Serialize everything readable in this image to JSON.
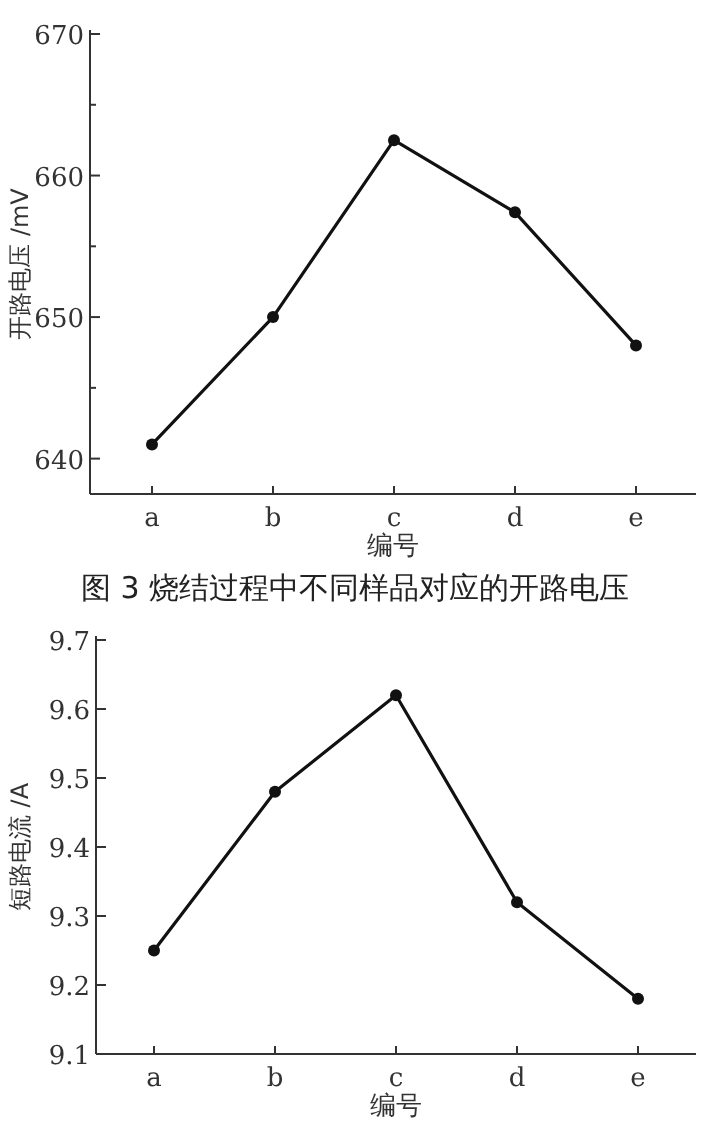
{
  "chart_data": [
    {
      "type": "line",
      "categories": [
        "a",
        "b",
        "c",
        "d",
        "e"
      ],
      "xlabel": "编号",
      "ylabel": "开路电压 /mV",
      "values": [
        641,
        650,
        662.5,
        657.4,
        648
      ],
      "color": "#111111",
      "marker": "circle",
      "line_style": "solid",
      "ylim": [
        637.5,
        670
      ],
      "yticks": [
        640,
        {
          "value": 645,
          "label": null
        },
        650,
        {
          "value": 655,
          "label": null
        },
        660,
        {
          "value": 665,
          "label": null
        },
        670
      ],
      "annotations": [
        "图 3  烧结过程中不同样品对应的开路电压"
      ]
    },
    {
      "type": "line",
      "categories": [
        "a",
        "b",
        "c",
        "d",
        "e"
      ],
      "xlabel": "编号",
      "ylabel": "短路电流 /A",
      "values": [
        9.25,
        9.48,
        9.62,
        9.32,
        9.18
      ],
      "color": "#111111",
      "marker": "circle",
      "line_style": "solid",
      "ylim": [
        9.1,
        9.7
      ],
      "yticks": [
        9.1,
        9.2,
        9.3,
        9.4,
        9.5,
        9.6,
        9.7
      ]
    }
  ]
}
